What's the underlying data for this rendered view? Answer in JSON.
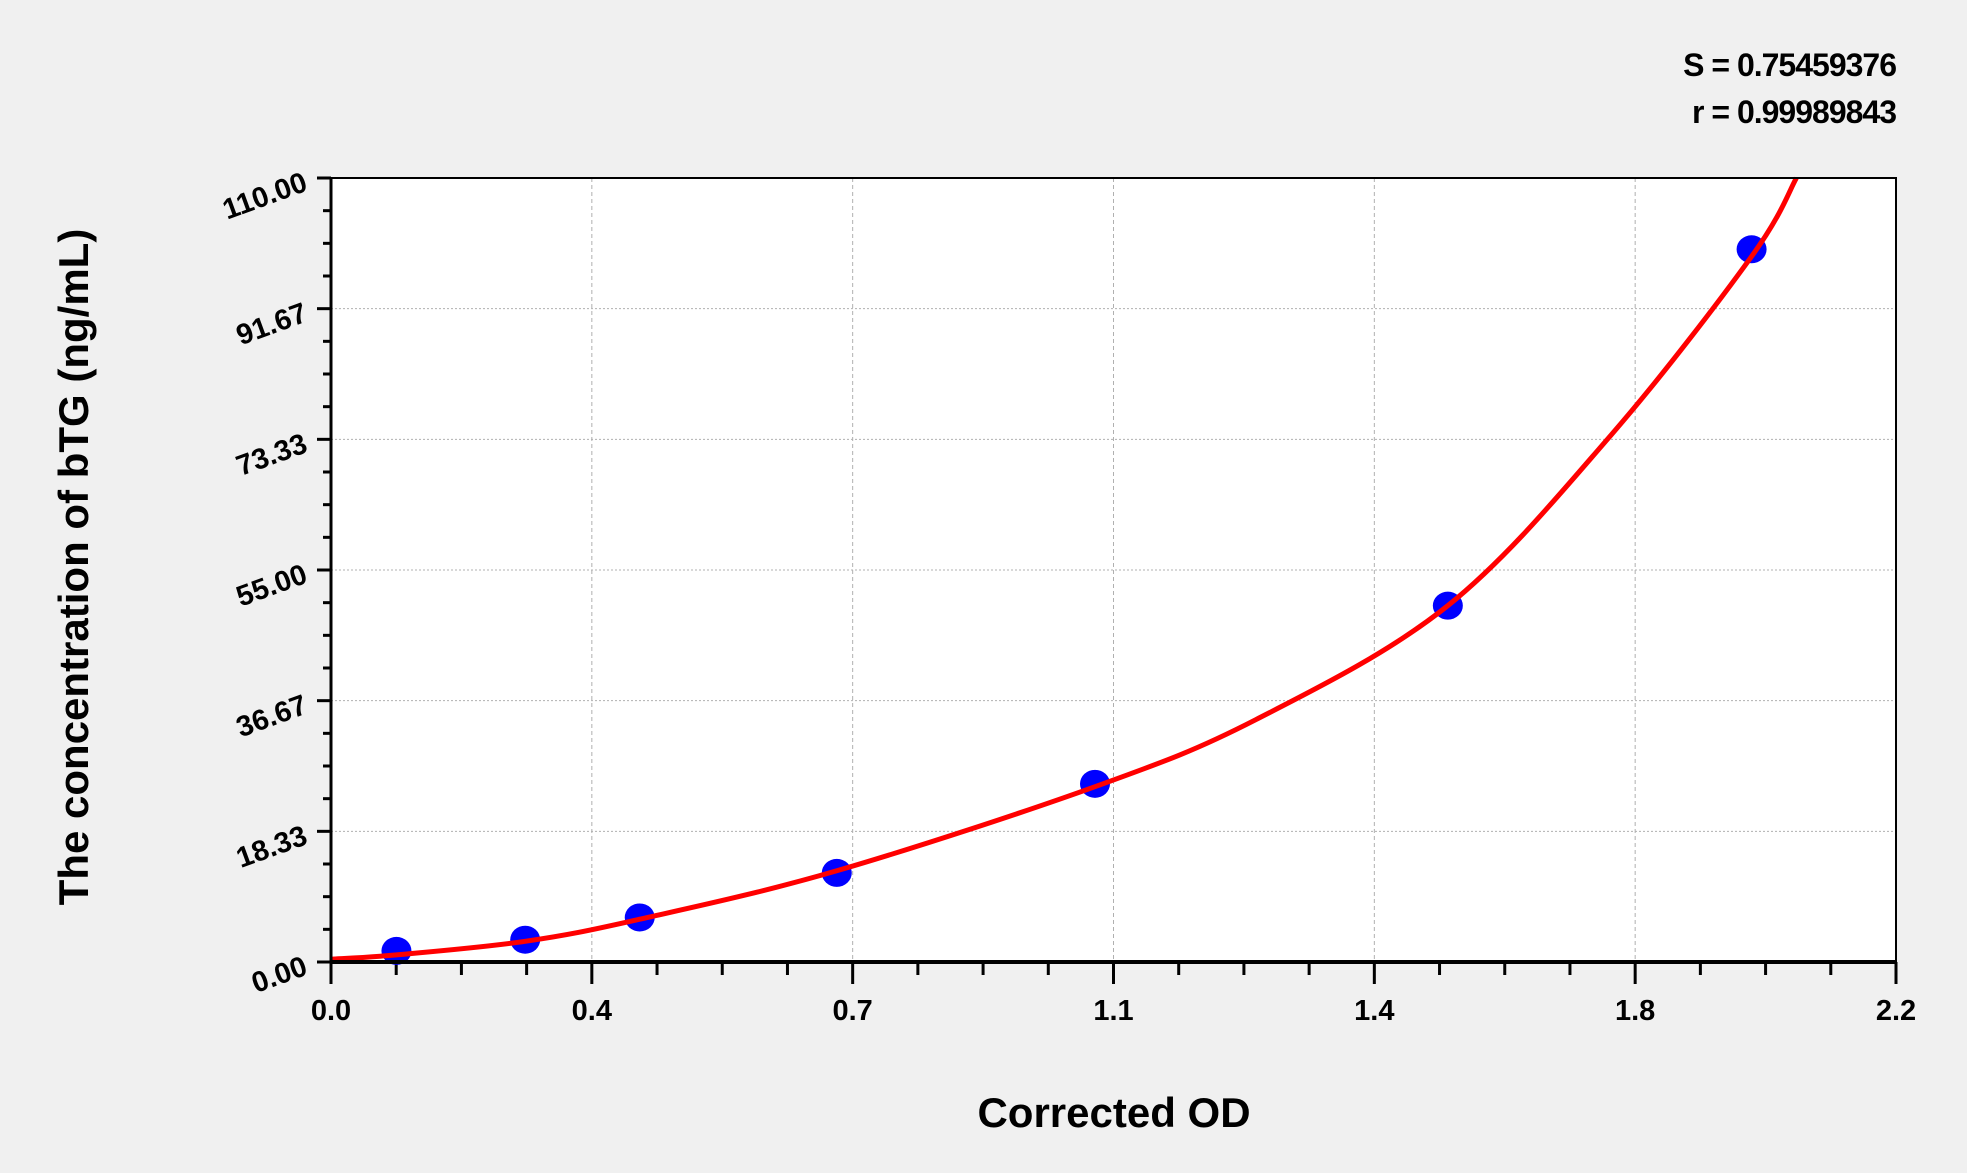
{
  "chart_data": {
    "type": "scatter",
    "xlabel": "Corrected OD",
    "ylabel": "The concentration of bTG (ng/mL)",
    "xlim": [
      0,
      2.2
    ],
    "ylim": [
      0,
      110
    ],
    "x_tick_labels": [
      "0.0",
      "0.4",
      "0.7",
      "1.1",
      "1.4",
      "1.8",
      "2.2"
    ],
    "y_tick_labels": [
      "0.00",
      "18.33",
      "36.67",
      "55.00",
      "73.33",
      "91.67",
      "110.00"
    ],
    "grid": true,
    "stats": [
      "S = 0.75459376",
      "r = 0.99989843"
    ],
    "points": {
      "x": [
        0.092,
        0.273,
        0.434,
        0.711,
        1.074,
        1.57,
        1.997
      ],
      "y": [
        1.56,
        3.13,
        6.25,
        12.5,
        25,
        50,
        100
      ]
    },
    "fit_curve": {
      "x": [
        0,
        0.092,
        0.273,
        0.434,
        0.711,
        1.074,
        1.3,
        1.57,
        1.8,
        1.997,
        2.06
      ],
      "y": [
        0.4,
        1.0,
        2.9,
        6.0,
        12.8,
        24.6,
        34,
        50,
        74,
        99,
        110
      ]
    },
    "colors": {
      "points": "#0000ff",
      "curve": "#ff0000",
      "grid": "#b0b0b0",
      "background": "#f0f0f0",
      "plot_bg": "#ffffff"
    }
  }
}
